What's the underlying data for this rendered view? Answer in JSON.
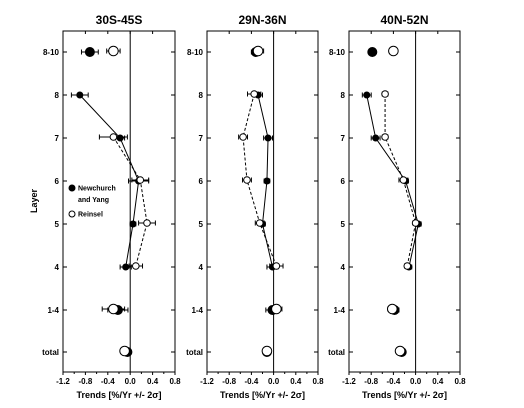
{
  "chart_data": [
    {
      "type": "scatter",
      "title": "30S-45S",
      "xlabel": "Trends [%/Yr +/- 2σ]",
      "ylabel": "Layer",
      "xlim": [
        -1.2,
        0.8
      ],
      "xticks": [
        "-1.2",
        "-0.8",
        "-0.4",
        "0.0",
        "0.4",
        "0.8"
      ],
      "categories": [
        "8-10",
        "8",
        "7",
        "6",
        "5",
        "4",
        "1-4",
        "total"
      ],
      "legend": {
        "position": "left",
        "entries": [
          "Newchurch and Yang",
          "Reinsel"
        ]
      },
      "series": [
        {
          "name": "Newchurch and Yang",
          "marker": "filled-circle",
          "line": "solid",
          "points": [
            {
              "layer": "8-10",
              "value": -0.72,
              "err": 0.15,
              "big": true,
              "connected": false
            },
            {
              "layer": "8",
              "value": -0.9,
              "err": 0.15,
              "big": false,
              "connected": true
            },
            {
              "layer": "7",
              "value": -0.18,
              "err": 0.08,
              "big": false,
              "connected": true
            },
            {
              "layer": "6",
              "value": 0.15,
              "err": 0.18,
              "big": false,
              "connected": true
            },
            {
              "layer": "5",
              "value": 0.05,
              "err": 0.05,
              "big": false,
              "connected": true
            },
            {
              "layer": "4",
              "value": -0.08,
              "err": 0.1,
              "big": false,
              "connected": true
            },
            {
              "layer": "1-4",
              "value": -0.22,
              "err": 0.18,
              "big": true,
              "connected": false
            },
            {
              "layer": "total",
              "value": -0.05,
              "err": 0.05,
              "big": true,
              "connected": false
            }
          ]
        },
        {
          "name": "Reinsel",
          "marker": "open-circle",
          "line": "dashed",
          "points": [
            {
              "layer": "8-10",
              "value": -0.3,
              "err": 0.12,
              "big": true,
              "connected": false
            },
            {
              "layer": "7",
              "value": -0.3,
              "err": 0.25,
              "big": false,
              "connected": true
            },
            {
              "layer": "6",
              "value": 0.18,
              "err": 0.15,
              "big": false,
              "connected": true
            },
            {
              "layer": "5",
              "value": 0.3,
              "err": 0.15,
              "big": false,
              "connected": true
            },
            {
              "layer": "4",
              "value": 0.1,
              "err": 0.12,
              "big": false,
              "connected": true
            },
            {
              "layer": "1-4",
              "value": -0.3,
              "err": 0.2,
              "big": true,
              "connected": false
            },
            {
              "layer": "total",
              "value": -0.1,
              "err": 0.05,
              "big": true,
              "connected": false
            }
          ]
        }
      ]
    },
    {
      "type": "scatter",
      "title": "29N-36N",
      "xlabel": "Trends [%/Yr +/- 2σ]",
      "ylabel": "",
      "xlim": [
        -1.2,
        0.8
      ],
      "xticks": [
        "-1.2",
        "-0.8",
        "-0.4",
        "0.0",
        "0.4",
        "0.8"
      ],
      "categories": [
        "8-10",
        "8",
        "7",
        "6",
        "5",
        "4",
        "1-4",
        "total"
      ],
      "series": [
        {
          "name": "Newchurch and Yang",
          "marker": "filled-circle",
          "line": "solid",
          "points": [
            {
              "layer": "8-10",
              "value": -0.32,
              "err": 0.08,
              "big": true,
              "connected": false
            },
            {
              "layer": "8",
              "value": -0.28,
              "err": 0.08,
              "big": false,
              "connected": true
            },
            {
              "layer": "7",
              "value": -0.1,
              "err": 0.08,
              "big": false,
              "connected": true
            },
            {
              "layer": "6",
              "value": -0.12,
              "err": 0.05,
              "big": false,
              "connected": true
            },
            {
              "layer": "5",
              "value": -0.2,
              "err": 0.05,
              "big": false,
              "connected": true
            },
            {
              "layer": "4",
              "value": -0.02,
              "err": 0.1,
              "big": false,
              "connected": true
            },
            {
              "layer": "1-4",
              "value": -0.02,
              "err": 0.12,
              "big": true,
              "connected": false
            },
            {
              "layer": "total",
              "value": -0.12,
              "err": 0.03,
              "big": true,
              "connected": false
            }
          ]
        },
        {
          "name": "Reinsel",
          "marker": "open-circle",
          "line": "dashed",
          "points": [
            {
              "layer": "8-10",
              "value": -0.28,
              "err": 0.1,
              "big": true,
              "connected": false
            },
            {
              "layer": "8",
              "value": -0.35,
              "err": 0.12,
              "big": false,
              "connected": true
            },
            {
              "layer": "7",
              "value": -0.55,
              "err": 0.08,
              "big": false,
              "connected": true
            },
            {
              "layer": "6",
              "value": -0.48,
              "err": 0.08,
              "big": false,
              "connected": true
            },
            {
              "layer": "5",
              "value": -0.25,
              "err": 0.08,
              "big": false,
              "connected": true
            },
            {
              "layer": "4",
              "value": 0.05,
              "err": 0.12,
              "big": false,
              "connected": true
            },
            {
              "layer": "1-4",
              "value": 0.05,
              "err": 0.1,
              "big": true,
              "connected": false
            },
            {
              "layer": "total",
              "value": -0.12,
              "err": 0.05,
              "big": true,
              "connected": false
            }
          ]
        }
      ]
    },
    {
      "type": "scatter",
      "title": "40N-52N",
      "xlabel": "Trends [%/Yr +/- 2σ]",
      "ylabel": "",
      "xlim": [
        -1.2,
        0.8
      ],
      "xticks": [
        "-1.2",
        "-0.8",
        "-0.4",
        "0.0",
        "0.4",
        "0.8"
      ],
      "categories": [
        "8-10",
        "8",
        "7",
        "6",
        "5",
        "4",
        "1-4",
        "total"
      ],
      "series": [
        {
          "name": "Newchurch and Yang",
          "marker": "filled-circle",
          "line": "solid",
          "points": [
            {
              "layer": "8-10",
              "value": -0.78,
              "err": 0.05,
              "big": true,
              "connected": false
            },
            {
              "layer": "8",
              "value": -0.88,
              "err": 0.08,
              "big": false,
              "connected": true
            },
            {
              "layer": "7",
              "value": -0.72,
              "err": 0.08,
              "big": false,
              "connected": true
            },
            {
              "layer": "6",
              "value": -0.18,
              "err": 0.05,
              "big": false,
              "connected": true
            },
            {
              "layer": "5",
              "value": 0.05,
              "err": 0.05,
              "big": false,
              "connected": true
            },
            {
              "layer": "4",
              "value": -0.12,
              "err": 0.05,
              "big": false,
              "connected": true
            },
            {
              "layer": "1-4",
              "value": -0.38,
              "err": 0.08,
              "big": true,
              "connected": false
            },
            {
              "layer": "total",
              "value": -0.25,
              "err": 0.05,
              "big": true,
              "connected": false
            }
          ]
        },
        {
          "name": "Reinsel",
          "marker": "open-circle",
          "line": "dashed",
          "points": [
            {
              "layer": "8-10",
              "value": -0.4,
              "err": 0.05,
              "big": true,
              "connected": false
            },
            {
              "layer": "8",
              "value": -0.55,
              "err": 0.05,
              "big": false,
              "connected": true
            },
            {
              "layer": "7",
              "value": -0.55,
              "err": 0.05,
              "big": false,
              "connected": true
            },
            {
              "layer": "6",
              "value": -0.22,
              "err": 0.08,
              "big": false,
              "connected": true
            },
            {
              "layer": "5",
              "value": 0.0,
              "err": 0.05,
              "big": false,
              "connected": true
            },
            {
              "layer": "4",
              "value": -0.15,
              "err": 0.05,
              "big": false,
              "connected": true
            },
            {
              "layer": "1-4",
              "value": -0.42,
              "err": 0.08,
              "big": true,
              "connected": false
            },
            {
              "layer": "total",
              "value": -0.28,
              "err": 0.05,
              "big": true,
              "connected": false
            }
          ]
        }
      ]
    }
  ]
}
